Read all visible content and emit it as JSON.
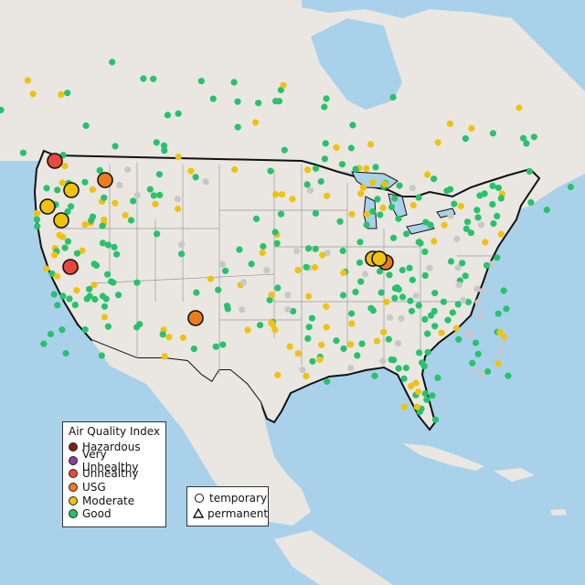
{
  "legend": {
    "title": "Air Quality Index",
    "categories": [
      {
        "label": "Hazardous",
        "color": "#7e2218"
      },
      {
        "label": "Very Unhealthy",
        "color": "#8f3f97"
      },
      {
        "label": "Unhealthy",
        "color": "#e8493c"
      },
      {
        "label": "USG",
        "color": "#ec7d1c"
      },
      {
        "label": "Moderate",
        "color": "#f0c20e"
      },
      {
        "label": "Good",
        "color": "#27c26c"
      }
    ],
    "monitor_types": [
      {
        "label": "temporary",
        "shape": "circle"
      },
      {
        "label": "permanent",
        "shape": "triangle"
      }
    ]
  },
  "colors": {
    "land": "#eae7e2",
    "water": "#a9d2ea",
    "border": "#111111",
    "state_line": "#9a9a9a",
    "no_data": "#c8c8c8"
  },
  "highlighted_sites": [
    {
      "category": "Unhealthy",
      "near": "Seattle, WA"
    },
    {
      "category": "Unhealthy",
      "near": "Reno, NV"
    },
    {
      "category": "USG",
      "near": "Northern Idaho"
    },
    {
      "category": "USG",
      "near": "Albuquerque, NM"
    },
    {
      "category": "USG",
      "near": "Chicago, IL"
    },
    {
      "category": "Moderate",
      "near": "Oregon (multiple)"
    },
    {
      "category": "Moderate",
      "near": "Chicago, IL"
    }
  ]
}
